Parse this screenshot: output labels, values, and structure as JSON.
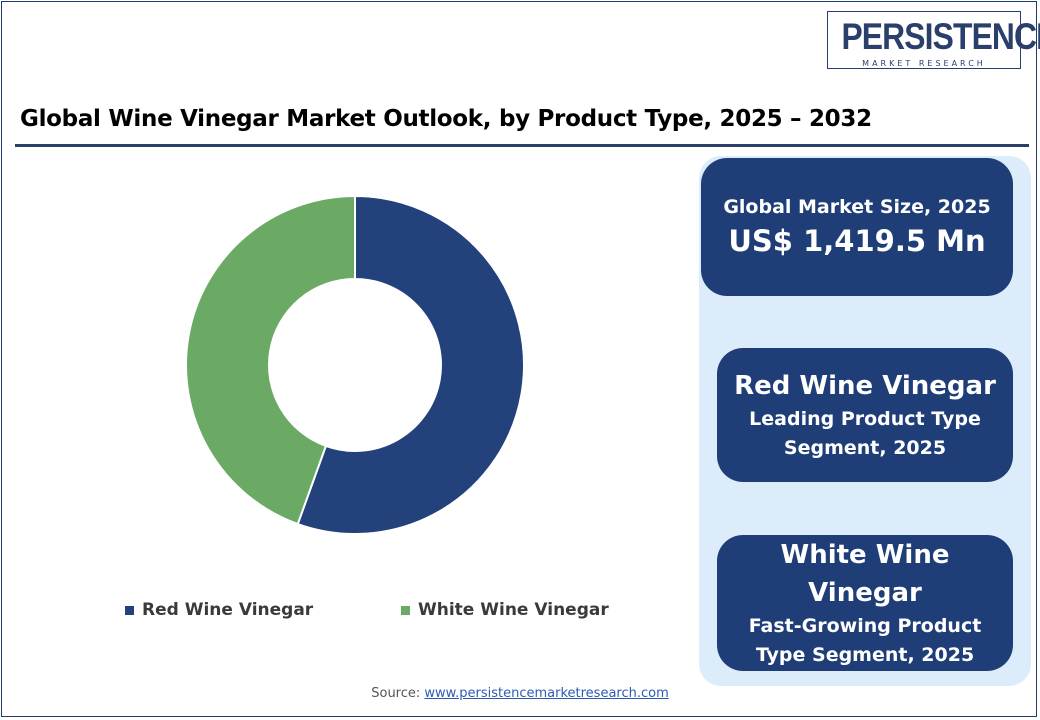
{
  "logo": {
    "name": "PERSISTENCE",
    "tagline": "MARKET RESEARCH"
  },
  "title": "Global Wine Vinegar Market Outlook, by Product Type, 2025 – 2032",
  "chart_data": {
    "type": "pie",
    "donut": true,
    "categories": [
      "Red Wine Vinegar",
      "White Wine Vinegar"
    ],
    "values": [
      55.5,
      44.5
    ],
    "colors": [
      "#23417b",
      "#6aaa64"
    ],
    "legend_position": "bottom"
  },
  "cards": {
    "market_size_label": "Global Market Size, 2025",
    "market_size_value": "US$ 1,419.5 Mn",
    "leading_name": "Red Wine Vinegar",
    "leading_desc_line1": "Leading Product Type",
    "leading_desc_line2": "Segment, 2025",
    "growing_name_line1": "White Wine",
    "growing_name_line2": "Vinegar",
    "growing_desc_line1": "Fast-Growing Product",
    "growing_desc_line2": "Type Segment, 2025"
  },
  "source": {
    "label": "Source: ",
    "link": "www.persistencemarketresearch.com"
  }
}
